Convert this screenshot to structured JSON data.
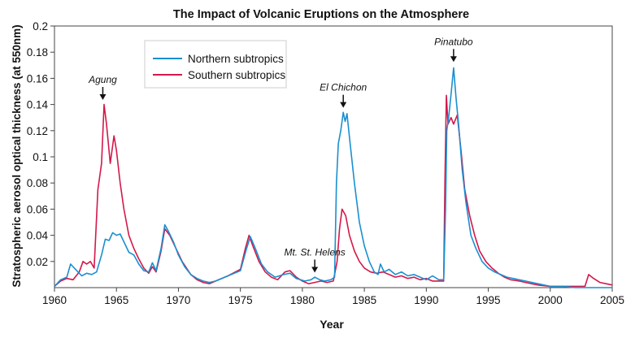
{
  "chart_data": {
    "type": "line",
    "title": "The Impact of Volcanic Eruptions on the Atmosphere",
    "xlabel": "Year",
    "ylabel": "Stratospheric aerosol optical thickness (at 550nm)",
    "xlim": [
      1960,
      2005
    ],
    "ylim": [
      0,
      0.2
    ],
    "xticks": [
      "1960",
      "1965",
      "1970",
      "1975",
      "1980",
      "1985",
      "1990",
      "1995",
      "2000",
      "2005"
    ],
    "yticks": [
      "0.02",
      "0.04",
      "0.06",
      "0.08",
      "0.1",
      "0.12",
      "0.14",
      "0.16",
      "0.18",
      "0.2"
    ],
    "grid": false,
    "legend_position": "top-left",
    "series": [
      {
        "name": "Northern subtropics",
        "color": "#1a8fd0",
        "points": [
          [
            1960.0,
            0.001
          ],
          [
            1960.5,
            0.006
          ],
          [
            1961.0,
            0.008
          ],
          [
            1961.3,
            0.018
          ],
          [
            1961.8,
            0.013
          ],
          [
            1962.2,
            0.009
          ],
          [
            1962.6,
            0.011
          ],
          [
            1963.0,
            0.01
          ],
          [
            1963.4,
            0.012
          ],
          [
            1963.8,
            0.025
          ],
          [
            1964.1,
            0.037
          ],
          [
            1964.4,
            0.036
          ],
          [
            1964.7,
            0.042
          ],
          [
            1965.0,
            0.04
          ],
          [
            1965.3,
            0.041
          ],
          [
            1965.6,
            0.035
          ],
          [
            1966.0,
            0.027
          ],
          [
            1966.4,
            0.025
          ],
          [
            1966.8,
            0.018
          ],
          [
            1967.2,
            0.013
          ],
          [
            1967.6,
            0.012
          ],
          [
            1967.9,
            0.019
          ],
          [
            1968.2,
            0.013
          ],
          [
            1968.6,
            0.03
          ],
          [
            1968.9,
            0.048
          ],
          [
            1969.2,
            0.043
          ],
          [
            1969.6,
            0.035
          ],
          [
            1970.0,
            0.025
          ],
          [
            1970.5,
            0.016
          ],
          [
            1971.0,
            0.01
          ],
          [
            1971.5,
            0.007
          ],
          [
            1972.0,
            0.005
          ],
          [
            1972.5,
            0.004
          ],
          [
            1973.0,
            0.005
          ],
          [
            1974.0,
            0.009
          ],
          [
            1975.0,
            0.013
          ],
          [
            1975.5,
            0.03
          ],
          [
            1975.8,
            0.039
          ],
          [
            1976.2,
            0.03
          ],
          [
            1976.7,
            0.018
          ],
          [
            1977.2,
            0.012
          ],
          [
            1977.8,
            0.008
          ],
          [
            1978.5,
            0.01
          ],
          [
            1979.0,
            0.011
          ],
          [
            1979.5,
            0.007
          ],
          [
            1980.2,
            0.005
          ],
          [
            1980.7,
            0.006
          ],
          [
            1981.0,
            0.008
          ],
          [
            1981.4,
            0.006
          ],
          [
            1981.8,
            0.005
          ],
          [
            1982.3,
            0.006
          ],
          [
            1982.6,
            0.008
          ],
          [
            1982.75,
            0.08
          ],
          [
            1982.9,
            0.11
          ],
          [
            1983.1,
            0.12
          ],
          [
            1983.3,
            0.134
          ],
          [
            1983.45,
            0.127
          ],
          [
            1983.6,
            0.133
          ],
          [
            1983.8,
            0.115
          ],
          [
            1984.2,
            0.08
          ],
          [
            1984.6,
            0.05
          ],
          [
            1985.0,
            0.032
          ],
          [
            1985.4,
            0.02
          ],
          [
            1985.8,
            0.012
          ],
          [
            1986.1,
            0.01
          ],
          [
            1986.3,
            0.018
          ],
          [
            1986.6,
            0.012
          ],
          [
            1987.0,
            0.014
          ],
          [
            1987.5,
            0.01
          ],
          [
            1988.0,
            0.012
          ],
          [
            1988.5,
            0.009
          ],
          [
            1989.0,
            0.01
          ],
          [
            1989.5,
            0.008
          ],
          [
            1990.0,
            0.006
          ],
          [
            1990.5,
            0.009
          ],
          [
            1991.0,
            0.006
          ],
          [
            1991.4,
            0.006
          ],
          [
            1991.55,
            0.06
          ],
          [
            1991.65,
            0.12
          ],
          [
            1991.8,
            0.13
          ],
          [
            1992.0,
            0.148
          ],
          [
            1992.2,
            0.168
          ],
          [
            1992.4,
            0.145
          ],
          [
            1992.6,
            0.125
          ],
          [
            1992.9,
            0.09
          ],
          [
            1993.2,
            0.065
          ],
          [
            1993.6,
            0.04
          ],
          [
            1994.0,
            0.03
          ],
          [
            1994.5,
            0.02
          ],
          [
            1995.0,
            0.015
          ],
          [
            1995.5,
            0.012
          ],
          [
            1996.0,
            0.01
          ],
          [
            1996.5,
            0.008
          ],
          [
            1997.0,
            0.007
          ],
          [
            1998.0,
            0.005
          ],
          [
            1999.0,
            0.003
          ],
          [
            2000.0,
            0.001
          ],
          [
            2001.0,
            0.001
          ],
          [
            2002.0,
            0.0
          ],
          [
            2003.0,
            0.0
          ],
          [
            2005.0,
            0.0
          ]
        ]
      },
      {
        "name": "Southern subtropics",
        "color": "#d4184a",
        "points": [
          [
            1960.0,
            0.001
          ],
          [
            1960.5,
            0.005
          ],
          [
            1961.0,
            0.007
          ],
          [
            1961.5,
            0.006
          ],
          [
            1962.0,
            0.012
          ],
          [
            1962.3,
            0.02
          ],
          [
            1962.6,
            0.018
          ],
          [
            1962.9,
            0.02
          ],
          [
            1963.2,
            0.015
          ],
          [
            1963.5,
            0.075
          ],
          [
            1963.8,
            0.095
          ],
          [
            1964.0,
            0.14
          ],
          [
            1964.2,
            0.125
          ],
          [
            1964.5,
            0.095
          ],
          [
            1964.8,
            0.116
          ],
          [
            1965.0,
            0.105
          ],
          [
            1965.3,
            0.08
          ],
          [
            1965.6,
            0.06
          ],
          [
            1966.0,
            0.04
          ],
          [
            1966.4,
            0.03
          ],
          [
            1966.8,
            0.022
          ],
          [
            1967.2,
            0.015
          ],
          [
            1967.6,
            0.011
          ],
          [
            1967.9,
            0.016
          ],
          [
            1968.2,
            0.012
          ],
          [
            1968.6,
            0.028
          ],
          [
            1968.9,
            0.045
          ],
          [
            1969.3,
            0.04
          ],
          [
            1969.8,
            0.03
          ],
          [
            1970.3,
            0.02
          ],
          [
            1971.0,
            0.01
          ],
          [
            1971.5,
            0.006
          ],
          [
            1972.0,
            0.004
          ],
          [
            1972.5,
            0.003
          ],
          [
            1973.0,
            0.005
          ],
          [
            1974.0,
            0.009
          ],
          [
            1975.0,
            0.014
          ],
          [
            1975.4,
            0.03
          ],
          [
            1975.7,
            0.04
          ],
          [
            1976.0,
            0.032
          ],
          [
            1976.5,
            0.02
          ],
          [
            1977.0,
            0.012
          ],
          [
            1977.5,
            0.008
          ],
          [
            1978.0,
            0.006
          ],
          [
            1978.6,
            0.012
          ],
          [
            1979.0,
            0.013
          ],
          [
            1979.5,
            0.008
          ],
          [
            1980.0,
            0.005
          ],
          [
            1980.5,
            0.003
          ],
          [
            1981.0,
            0.004
          ],
          [
            1981.5,
            0.005
          ],
          [
            1982.0,
            0.004
          ],
          [
            1982.5,
            0.005
          ],
          [
            1982.8,
            0.02
          ],
          [
            1983.0,
            0.045
          ],
          [
            1983.2,
            0.06
          ],
          [
            1983.5,
            0.055
          ],
          [
            1983.8,
            0.04
          ],
          [
            1984.2,
            0.028
          ],
          [
            1984.6,
            0.02
          ],
          [
            1985.0,
            0.015
          ],
          [
            1985.5,
            0.012
          ],
          [
            1986.0,
            0.011
          ],
          [
            1986.5,
            0.012
          ],
          [
            1987.0,
            0.01
          ],
          [
            1987.5,
            0.008
          ],
          [
            1988.0,
            0.009
          ],
          [
            1988.5,
            0.007
          ],
          [
            1989.0,
            0.008
          ],
          [
            1989.5,
            0.006
          ],
          [
            1990.0,
            0.007
          ],
          [
            1990.5,
            0.005
          ],
          [
            1991.0,
            0.005
          ],
          [
            1991.4,
            0.005
          ],
          [
            1991.5,
            0.08
          ],
          [
            1991.62,
            0.147
          ],
          [
            1991.75,
            0.125
          ],
          [
            1992.0,
            0.13
          ],
          [
            1992.2,
            0.125
          ],
          [
            1992.5,
            0.132
          ],
          [
            1992.8,
            0.105
          ],
          [
            1993.1,
            0.075
          ],
          [
            1993.5,
            0.055
          ],
          [
            1993.9,
            0.04
          ],
          [
            1994.3,
            0.028
          ],
          [
            1994.8,
            0.02
          ],
          [
            1995.3,
            0.015
          ],
          [
            1995.8,
            0.011
          ],
          [
            1996.3,
            0.008
          ],
          [
            1996.8,
            0.006
          ],
          [
            1997.5,
            0.005
          ],
          [
            1998.0,
            0.004
          ],
          [
            1999.0,
            0.002
          ],
          [
            2000.0,
            0.001
          ],
          [
            2002.0,
            0.001
          ],
          [
            2002.8,
            0.001
          ],
          [
            2003.1,
            0.01
          ],
          [
            2003.5,
            0.007
          ],
          [
            2004.0,
            0.004
          ],
          [
            2004.5,
            0.003
          ],
          [
            2005.0,
            0.002
          ]
        ]
      }
    ],
    "annotations": [
      {
        "label": "Agung",
        "x": 1963.9,
        "y": 0.141
      },
      {
        "label": "Mt. St. Helens",
        "x": 1981.0,
        "y": 0.009
      },
      {
        "label": "El Chichon",
        "x": 1983.3,
        "y": 0.135
      },
      {
        "label": "Pinatubo",
        "x": 1992.2,
        "y": 0.17
      }
    ]
  }
}
